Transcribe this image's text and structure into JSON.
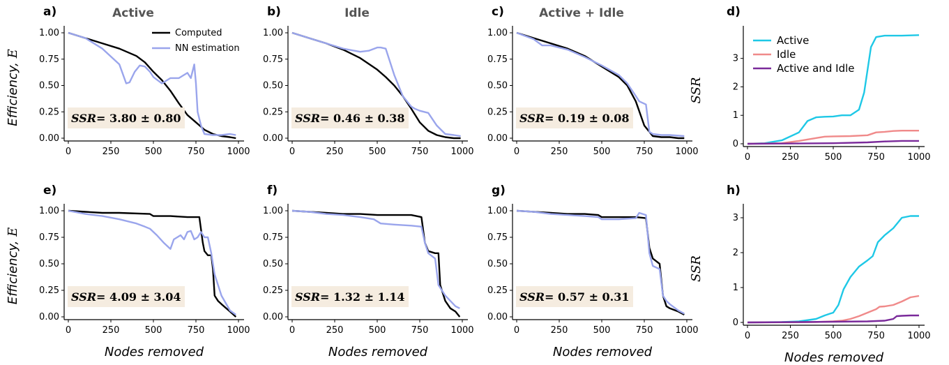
{
  "chart_data": [
    {
      "type": "line",
      "panel_label": "a)",
      "title": "Active",
      "xlabel": "",
      "ylabel": "Efficiency, E",
      "xlim": [
        0,
        1000
      ],
      "ylim": [
        0,
        1
      ],
      "xticks": [
        0,
        250,
        500,
        750,
        1000
      ],
      "yticks": [
        0.0,
        0.25,
        0.5,
        0.75,
        1.0
      ],
      "ssr_label": "SSR=",
      "ssr_value": "3.80 ± 0.80",
      "legend": [
        "Computed",
        "NN estimation"
      ],
      "legend_position": "top-right",
      "series": [
        {
          "name": "Computed",
          "color": "#000000",
          "x": [
            0,
            100,
            200,
            300,
            400,
            450,
            500,
            550,
            600,
            650,
            700,
            750,
            800,
            850,
            900,
            950,
            985
          ],
          "y": [
            1.0,
            0.95,
            0.9,
            0.85,
            0.78,
            0.72,
            0.63,
            0.55,
            0.45,
            0.33,
            0.22,
            0.15,
            0.08,
            0.04,
            0.02,
            0.01,
            0.0
          ]
        },
        {
          "name": "NN estimation",
          "color": "#9aa5ec",
          "x": [
            0,
            100,
            200,
            300,
            340,
            360,
            390,
            420,
            450,
            480,
            500,
            550,
            600,
            650,
            700,
            720,
            740,
            750,
            760,
            780,
            800,
            850,
            900,
            950,
            985
          ],
          "y": [
            1.0,
            0.95,
            0.85,
            0.7,
            0.52,
            0.53,
            0.63,
            0.69,
            0.68,
            0.63,
            0.58,
            0.52,
            0.57,
            0.57,
            0.62,
            0.57,
            0.7,
            0.52,
            0.25,
            0.12,
            0.04,
            0.03,
            0.03,
            0.04,
            0.03
          ]
        }
      ]
    },
    {
      "type": "line",
      "panel_label": "b)",
      "title": "Idle",
      "xlabel": "",
      "ylabel": "",
      "xlim": [
        0,
        1000
      ],
      "ylim": [
        0,
        1
      ],
      "xticks": [
        0,
        250,
        500,
        750,
        1000
      ],
      "yticks": [
        0.0,
        0.25,
        0.5,
        0.75,
        1.0
      ],
      "ssr_label": "SSR=",
      "ssr_value": "0.46 ± 0.38",
      "series": [
        {
          "color": "#000000",
          "x": [
            0,
            100,
            200,
            300,
            400,
            500,
            550,
            600,
            650,
            700,
            750,
            800,
            850,
            900,
            950,
            990
          ],
          "y": [
            1.0,
            0.95,
            0.9,
            0.84,
            0.76,
            0.65,
            0.58,
            0.5,
            0.4,
            0.28,
            0.15,
            0.07,
            0.03,
            0.01,
            0.0,
            0.0
          ]
        },
        {
          "color": "#9aa5ec",
          "x": [
            0,
            100,
            200,
            300,
            400,
            450,
            500,
            520,
            550,
            600,
            650,
            700,
            720,
            750,
            800,
            850,
            900,
            950,
            990
          ],
          "y": [
            1.0,
            0.95,
            0.9,
            0.85,
            0.82,
            0.83,
            0.86,
            0.86,
            0.85,
            0.6,
            0.4,
            0.3,
            0.28,
            0.26,
            0.24,
            0.12,
            0.04,
            0.03,
            0.02
          ]
        }
      ]
    },
    {
      "type": "line",
      "panel_label": "c)",
      "title": "Active + Idle",
      "xlabel": "",
      "ylabel": "",
      "xlim": [
        0,
        1000
      ],
      "ylim": [
        0,
        1
      ],
      "xticks": [
        0,
        250,
        500,
        750,
        1000
      ],
      "yticks": [
        0.0,
        0.25,
        0.5,
        0.75,
        1.0
      ],
      "ssr_label": "SSR=",
      "ssr_value": "0.19 ± 0.08",
      "series": [
        {
          "color": "#000000",
          "x": [
            0,
            100,
            200,
            300,
            400,
            500,
            600,
            650,
            700,
            750,
            800,
            850,
            900,
            950,
            985
          ],
          "y": [
            1.0,
            0.95,
            0.9,
            0.85,
            0.78,
            0.68,
            0.58,
            0.5,
            0.35,
            0.12,
            0.02,
            0.01,
            0.01,
            0.0,
            0.0
          ]
        },
        {
          "color": "#9aa5ec",
          "x": [
            0,
            100,
            150,
            200,
            300,
            400,
            500,
            600,
            650,
            700,
            720,
            760,
            780,
            800,
            850,
            900,
            985
          ],
          "y": [
            1.0,
            0.94,
            0.88,
            0.88,
            0.84,
            0.77,
            0.69,
            0.6,
            0.52,
            0.4,
            0.35,
            0.32,
            0.06,
            0.04,
            0.03,
            0.03,
            0.02
          ]
        }
      ]
    },
    {
      "type": "line",
      "panel_label": "d)",
      "title": "",
      "xlabel": "",
      "ylabel": "SSR",
      "xlim": [
        0,
        1000
      ],
      "ylim": [
        0,
        3.9
      ],
      "xticks": [
        0,
        250,
        500,
        750,
        1000
      ],
      "yticks": [
        0,
        1,
        2,
        3
      ],
      "legend": [
        "Active",
        "Idle",
        "Active and Idle"
      ],
      "legend_position": "top-left",
      "series": [
        {
          "name": "Active",
          "color": "#1ec8e6",
          "x": [
            0,
            100,
            200,
            300,
            350,
            400,
            450,
            500,
            550,
            600,
            650,
            680,
            700,
            720,
            750,
            800,
            900,
            1000
          ],
          "y": [
            0,
            0.02,
            0.12,
            0.4,
            0.8,
            0.93,
            0.95,
            0.96,
            1.0,
            1.0,
            1.2,
            1.8,
            2.6,
            3.4,
            3.75,
            3.8,
            3.8,
            3.82
          ]
        },
        {
          "name": "Idle",
          "color": "#f08a8a",
          "x": [
            0,
            200,
            300,
            400,
            450,
            500,
            600,
            700,
            750,
            800,
            850,
            900,
            1000
          ],
          "y": [
            0,
            0.02,
            0.1,
            0.2,
            0.25,
            0.26,
            0.27,
            0.3,
            0.4,
            0.42,
            0.45,
            0.46,
            0.46
          ]
        },
        {
          "name": "Active and Idle",
          "color": "#7a2a9a",
          "x": [
            0,
            300,
            500,
            700,
            800,
            900,
            1000
          ],
          "y": [
            0,
            0.01,
            0.02,
            0.05,
            0.08,
            0.1,
            0.1
          ]
        }
      ]
    },
    {
      "type": "line",
      "panel_label": "e)",
      "title": "",
      "xlabel": "Nodes removed",
      "ylabel": "Efficiency, E",
      "xlim": [
        0,
        1000
      ],
      "ylim": [
        0,
        1
      ],
      "xticks": [
        0,
        250,
        500,
        750,
        1000
      ],
      "yticks": [
        0.0,
        0.25,
        0.5,
        0.75,
        1.0
      ],
      "ssr_label": "SSR=",
      "ssr_value": "4.09 ± 3.04",
      "series": [
        {
          "color": "#000000",
          "x": [
            0,
            100,
            200,
            300,
            480,
            500,
            600,
            700,
            770,
            790,
            800,
            820,
            840,
            850,
            860,
            880,
            900,
            950,
            985
          ],
          "y": [
            1.0,
            0.99,
            0.98,
            0.98,
            0.97,
            0.95,
            0.95,
            0.94,
            0.94,
            0.7,
            0.62,
            0.58,
            0.58,
            0.45,
            0.2,
            0.15,
            0.12,
            0.05,
            0.0
          ]
        },
        {
          "color": "#9aa5ec",
          "x": [
            0,
            100,
            200,
            300,
            400,
            450,
            480,
            520,
            560,
            600,
            620,
            640,
            660,
            680,
            700,
            720,
            740,
            760,
            780,
            800,
            820,
            840,
            860,
            880,
            900,
            950,
            985
          ],
          "y": [
            1.0,
            0.97,
            0.95,
            0.92,
            0.88,
            0.85,
            0.83,
            0.77,
            0.7,
            0.64,
            0.73,
            0.75,
            0.77,
            0.73,
            0.8,
            0.81,
            0.73,
            0.75,
            0.8,
            0.75,
            0.75,
            0.6,
            0.4,
            0.3,
            0.2,
            0.06,
            0.02
          ]
        }
      ]
    },
    {
      "type": "line",
      "panel_label": "f)",
      "title": "",
      "xlabel": "Nodes removed",
      "ylabel": "",
      "xlim": [
        0,
        1000
      ],
      "ylim": [
        0,
        1
      ],
      "xticks": [
        0,
        250,
        500,
        750,
        1000
      ],
      "yticks": [
        0.0,
        0.25,
        0.5,
        0.75,
        1.0
      ],
      "ssr_label": "SSR=",
      "ssr_value": "1.32 ± 1.14",
      "series": [
        {
          "color": "#000000",
          "x": [
            0,
            100,
            200,
            300,
            400,
            500,
            600,
            700,
            760,
            780,
            800,
            840,
            860,
            870,
            900,
            930,
            960,
            985
          ],
          "y": [
            1.0,
            0.99,
            0.98,
            0.97,
            0.97,
            0.96,
            0.96,
            0.96,
            0.94,
            0.7,
            0.62,
            0.6,
            0.6,
            0.3,
            0.15,
            0.08,
            0.05,
            0.0
          ]
        },
        {
          "color": "#9aa5ec",
          "x": [
            0,
            100,
            200,
            300,
            400,
            480,
            520,
            600,
            700,
            760,
            780,
            800,
            840,
            860,
            880,
            900,
            930,
            960,
            985
          ],
          "y": [
            1.0,
            0.99,
            0.97,
            0.96,
            0.94,
            0.92,
            0.88,
            0.87,
            0.86,
            0.85,
            0.7,
            0.6,
            0.55,
            0.3,
            0.25,
            0.2,
            0.15,
            0.1,
            0.08
          ]
        }
      ]
    },
    {
      "type": "line",
      "panel_label": "g)",
      "title": "",
      "xlabel": "Nodes removed",
      "ylabel": "",
      "xlim": [
        0,
        1000
      ],
      "ylim": [
        0,
        1
      ],
      "xticks": [
        0,
        250,
        500,
        750,
        1000
      ],
      "yticks": [
        0.0,
        0.25,
        0.5,
        0.75,
        1.0
      ],
      "ssr_label": "SSR=",
      "ssr_value": "0.57 ± 0.31",
      "series": [
        {
          "color": "#000000",
          "x": [
            0,
            100,
            200,
            300,
            400,
            480,
            500,
            600,
            700,
            760,
            780,
            800,
            840,
            860,
            880,
            900,
            950,
            985
          ],
          "y": [
            1.0,
            0.99,
            0.98,
            0.97,
            0.97,
            0.96,
            0.94,
            0.94,
            0.94,
            0.93,
            0.65,
            0.55,
            0.5,
            0.2,
            0.1,
            0.08,
            0.05,
            0.02
          ]
        },
        {
          "color": "#9aa5ec",
          "x": [
            0,
            100,
            200,
            300,
            400,
            480,
            500,
            600,
            700,
            720,
            760,
            780,
            800,
            840,
            860,
            880,
            900,
            950,
            985
          ],
          "y": [
            1.0,
            0.99,
            0.97,
            0.96,
            0.95,
            0.94,
            0.92,
            0.92,
            0.93,
            0.98,
            0.96,
            0.6,
            0.48,
            0.45,
            0.2,
            0.15,
            0.12,
            0.06,
            0.03
          ]
        }
      ]
    },
    {
      "type": "line",
      "panel_label": "h)",
      "title": "",
      "xlabel": "Nodes removed",
      "ylabel": "SSR",
      "xlim": [
        0,
        1000
      ],
      "ylim": [
        0,
        3.2
      ],
      "xticks": [
        0,
        250,
        500,
        750,
        1000
      ],
      "yticks": [
        0,
        1,
        2,
        3
      ],
      "series": [
        {
          "color": "#1ec8e6",
          "x": [
            0,
            200,
            300,
            400,
            450,
            480,
            500,
            530,
            560,
            600,
            650,
            700,
            730,
            760,
            780,
            800,
            850,
            900,
            950,
            1000
          ],
          "y": [
            0,
            0.01,
            0.03,
            0.1,
            0.2,
            0.25,
            0.28,
            0.5,
            0.95,
            1.3,
            1.6,
            1.78,
            1.9,
            2.3,
            2.4,
            2.5,
            2.7,
            3.0,
            3.05,
            3.05
          ]
        },
        {
          "color": "#f08a8a",
          "x": [
            0,
            400,
            500,
            550,
            600,
            650,
            700,
            750,
            770,
            800,
            850,
            900,
            950,
            1000
          ],
          "y": [
            0,
            0.01,
            0.03,
            0.05,
            0.1,
            0.18,
            0.28,
            0.38,
            0.45,
            0.46,
            0.5,
            0.6,
            0.72,
            0.76
          ]
        },
        {
          "color": "#7a2a9a",
          "x": [
            0,
            300,
            500,
            700,
            800,
            850,
            870,
            900,
            950,
            1000
          ],
          "y": [
            0,
            0.01,
            0.02,
            0.03,
            0.05,
            0.1,
            0.18,
            0.19,
            0.2,
            0.2
          ]
        }
      ]
    }
  ]
}
